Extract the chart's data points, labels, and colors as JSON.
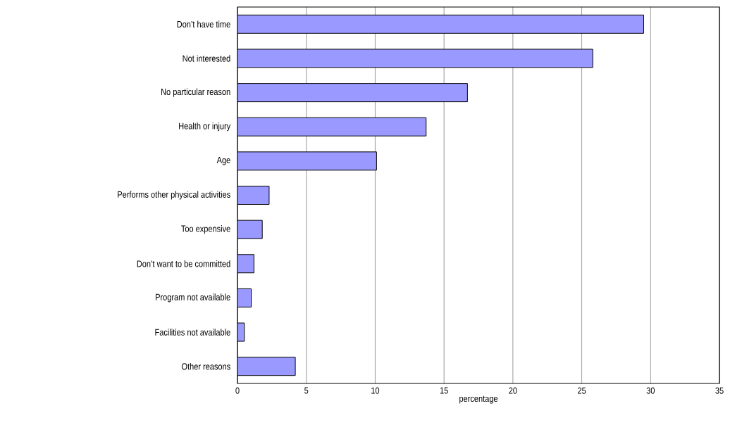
{
  "chart_data": {
    "type": "bar",
    "orientation": "horizontal",
    "xlabel": "percentage",
    "categories": [
      "Don’t have time",
      "Not interested",
      "No particular reason",
      "Health or injury",
      "Age",
      "Performs other physical activities",
      "Too expensive",
      "Don’t want to be committed",
      "Program not available",
      "Facilities not available",
      "Other reasons"
    ],
    "values": [
      29.5,
      25.8,
      16.7,
      13.7,
      10.1,
      2.3,
      1.8,
      1.2,
      1.0,
      0.5,
      4.2
    ],
    "color": "#9999ff",
    "xlim": [
      0,
      35
    ],
    "xticks": [
      0,
      5,
      10,
      15,
      20,
      25,
      30,
      35
    ],
    "grid": "x"
  }
}
